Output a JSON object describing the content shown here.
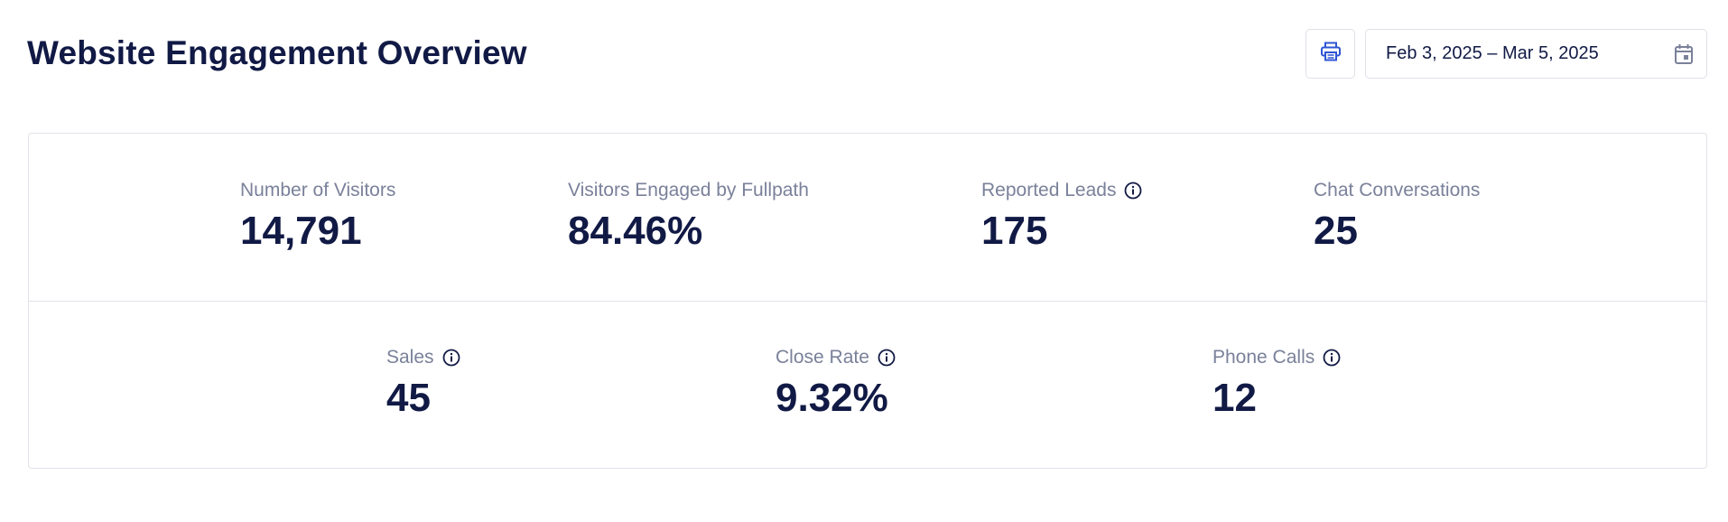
{
  "header": {
    "title": "Website Engagement Overview",
    "print_icon": "printer-icon",
    "date_range": "Feb 3, 2025 – Mar 5, 2025",
    "calendar_icon": "calendar-icon"
  },
  "colors": {
    "text_primary": "#111a45",
    "text_muted": "#7a819a",
    "accent_blue": "#2f55d4",
    "border": "#e1e3ea"
  },
  "stats": {
    "row1": [
      {
        "label": "Number of Visitors",
        "value": "14,791",
        "info": false
      },
      {
        "label": "Visitors Engaged by Fullpath",
        "value": "84.46%",
        "info": false
      },
      {
        "label": "Reported Leads",
        "value": "175",
        "info": true
      },
      {
        "label": "Chat Conversations",
        "value": "25",
        "info": false
      }
    ],
    "row2": [
      {
        "label": "Sales",
        "value": "45",
        "info": true
      },
      {
        "label": "Close Rate",
        "value": "9.32%",
        "info": true
      },
      {
        "label": "Phone Calls",
        "value": "12",
        "info": true
      }
    ]
  }
}
